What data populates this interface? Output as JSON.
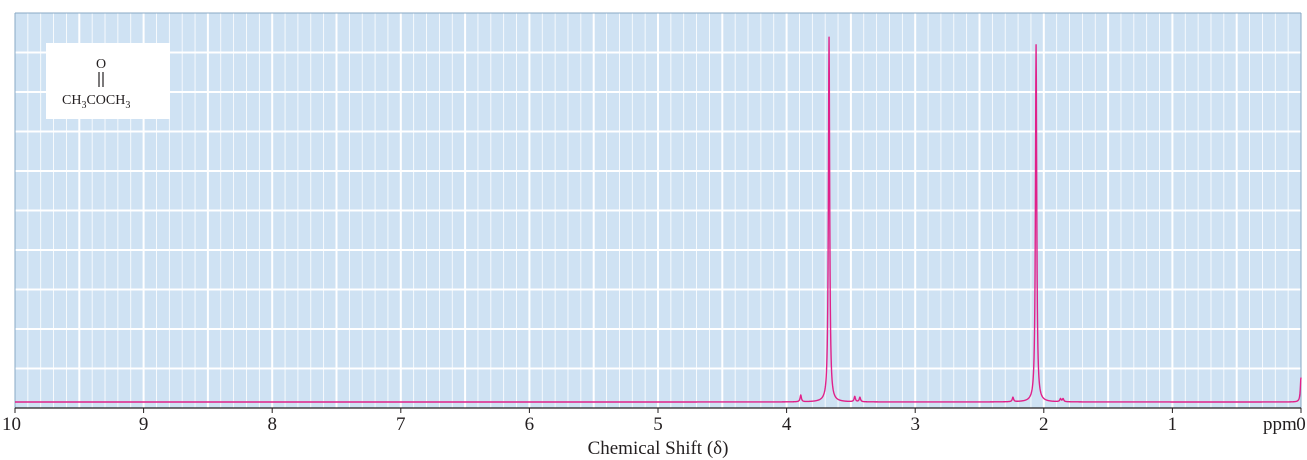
{
  "chart_data": {
    "type": "line",
    "title": "",
    "xlabel": "Chemical Shift (δ)",
    "x_unit": "ppm",
    "ylabel": "",
    "xlim": [
      10,
      0
    ],
    "x_reversed": true,
    "x_ticks": [
      10,
      9,
      8,
      7,
      6,
      5,
      4,
      3,
      2,
      1,
      0
    ],
    "tick_labels": [
      "10",
      "9",
      "8",
      "7",
      "6",
      "5",
      "4",
      "3",
      "2",
      "1",
      "0"
    ],
    "ylim": [
      0,
      1.0
    ],
    "grid": true,
    "legend": "none",
    "series": [
      {
        "color": "#e0218a",
        "peaks": [
          {
            "shift": 3.67,
            "height": 0.97
          },
          {
            "shift": 2.06,
            "height": 0.95
          },
          {
            "shift": 0.0,
            "height": 0.065
          },
          {
            "shift": 3.89,
            "height": 0.018
          },
          {
            "shift": 3.47,
            "height": 0.014
          },
          {
            "shift": 3.43,
            "height": 0.012
          },
          {
            "shift": 2.24,
            "height": 0.012
          },
          {
            "shift": 1.87,
            "height": 0.008
          },
          {
            "shift": 1.85,
            "height": 0.008
          }
        ]
      }
    ],
    "annotations": {
      "structure": {
        "carbonyl_oxygen": "O",
        "formula_parts": [
          "CH",
          "3",
          "COCH",
          "3"
        ]
      }
    }
  },
  "colors": {
    "plot_background": "#cfe2f3",
    "grid_line": "#ffffff",
    "spectrum": "#e0218a",
    "axis": "#231f20"
  }
}
